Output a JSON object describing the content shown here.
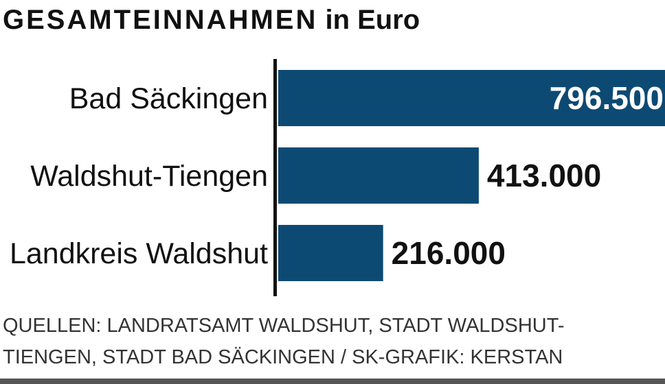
{
  "title": {
    "main": "GESAMTEINNAHMEN",
    "unit": "in Euro"
  },
  "chart_data": {
    "type": "bar",
    "orientation": "horizontal",
    "title": "GESAMTEINNAHMEN in Euro",
    "categories": [
      "Bad Säckingen",
      "Waldshut-Tiengen",
      "Landkreis Waldshut"
    ],
    "values": [
      796500,
      413000,
      216000
    ],
    "value_labels": [
      "796.500",
      "413.000",
      "216.000"
    ],
    "xlim": [
      0,
      796500
    ],
    "grid": false,
    "colors": {
      "bar": "#0d4a73",
      "label_inside": "#ffffff",
      "label_outside": "#111111",
      "axis": "#111111"
    }
  },
  "source": {
    "line1": "QUELLEN: LANDRATSAMT WALDSHUT, STADT WALDSHUT-",
    "line2": "TIENGEN, STADT BAD SÄCKINGEN / SK-GRAFIK: KERSTAN"
  }
}
